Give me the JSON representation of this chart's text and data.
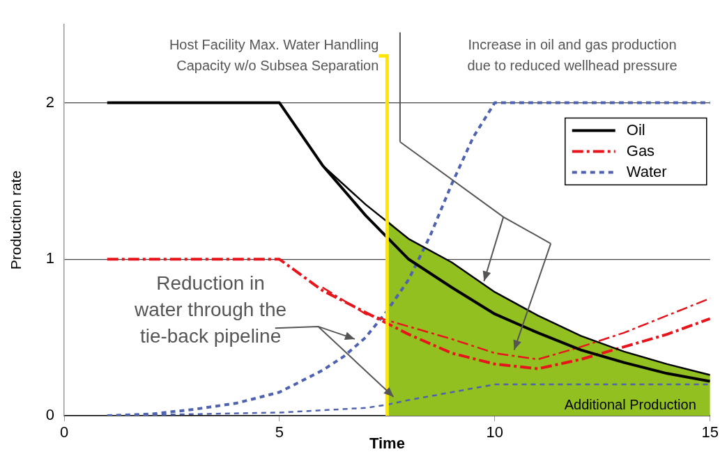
{
  "chart_data": {
    "type": "line",
    "xlabel": "Time",
    "ylabel": "Production rate",
    "xlim": [
      0,
      15
    ],
    "xticks": [
      0,
      5,
      10,
      15
    ],
    "ylim": [
      0,
      2.5
    ],
    "yticks": [
      0,
      1,
      2
    ],
    "grid": "y",
    "legend": "top right",
    "series": [
      {
        "name": "Oil",
        "color": "#000000",
        "line_style": "solid",
        "x": [
          1,
          2,
          3,
          4,
          5,
          6,
          7,
          8,
          9,
          10,
          11,
          12,
          13,
          14,
          15
        ],
        "values": [
          2,
          2,
          2,
          2,
          2,
          1.6,
          1.28,
          1.0,
          0.82,
          0.65,
          0.53,
          0.42,
          0.34,
          0.27,
          0.22
        ]
      },
      {
        "color": "#000000",
        "line_style": "solid",
        "x": [
          6,
          7,
          8,
          9,
          10,
          11,
          12,
          13,
          14,
          15
        ],
        "values": [
          1.6,
          1.35,
          1.13,
          0.98,
          0.79,
          0.64,
          0.51,
          0.41,
          0.33,
          0.26
        ]
      },
      {
        "name": "Gas",
        "color": "#e8141c",
        "line_style": "dashed",
        "x": [
          1,
          2,
          3,
          4,
          5,
          6,
          7,
          7.5,
          8,
          9,
          10,
          11,
          12,
          13,
          14,
          15
        ],
        "values": [
          1,
          1,
          1,
          1,
          1,
          0.8,
          0.66,
          0.59,
          0.52,
          0.4,
          0.33,
          0.3,
          0.36,
          0.44,
          0.52,
          0.62
        ]
      },
      {
        "color": "#e8141c",
        "line_style": "dashed",
        "x": [
          6,
          7,
          8,
          9,
          10,
          11,
          12,
          13,
          14,
          15
        ],
        "values": [
          0.82,
          0.65,
          0.57,
          0.49,
          0.4,
          0.36,
          0.44,
          0.53,
          0.64,
          0.75
        ]
      },
      {
        "name": "Water",
        "color": "#4f62b0",
        "line_style": "dotted",
        "x": [
          1,
          2,
          3,
          4,
          5,
          6,
          6.5,
          7,
          7.5,
          8,
          8.5,
          9,
          9.5,
          10,
          11,
          12,
          13,
          14,
          15
        ],
        "values": [
          0,
          0.01,
          0.04,
          0.08,
          0.15,
          0.29,
          0.38,
          0.5,
          0.67,
          0.87,
          1.15,
          1.48,
          1.78,
          2,
          2,
          2,
          2,
          2,
          2
        ]
      },
      {
        "color": "#4f62b0",
        "line_style": "dotted",
        "x": [
          1,
          5,
          7,
          7.5,
          8,
          9,
          10,
          11,
          12,
          13,
          14,
          15
        ],
        "values": [
          0,
          0.02,
          0.05,
          0.07,
          0.1,
          0.15,
          0.2,
          0.2,
          0.2,
          0.2,
          0.2,
          0.2
        ]
      },
      {
        "type": "area",
        "color": "#92c020",
        "x": [
          7.5,
          8,
          9,
          10,
          11,
          12,
          13,
          14,
          15
        ],
        "values": [
          1.25,
          1.13,
          0.98,
          0.79,
          0.64,
          0.51,
          0.41,
          0.33,
          0.26
        ]
      }
    ],
    "ref_lines": [
      {
        "axis": "x",
        "value": 7.5,
        "label": "Host Facility Max. Water Handling\nCapacity w/o Subsea Separation",
        "color": "#ffe600"
      }
    ],
    "annotations": [
      "Increase in oil and gas production\ndue to reduced wellhead pressure",
      "Reduction in\nwater through the\ntie-back pipeline",
      "Additional Production"
    ]
  }
}
